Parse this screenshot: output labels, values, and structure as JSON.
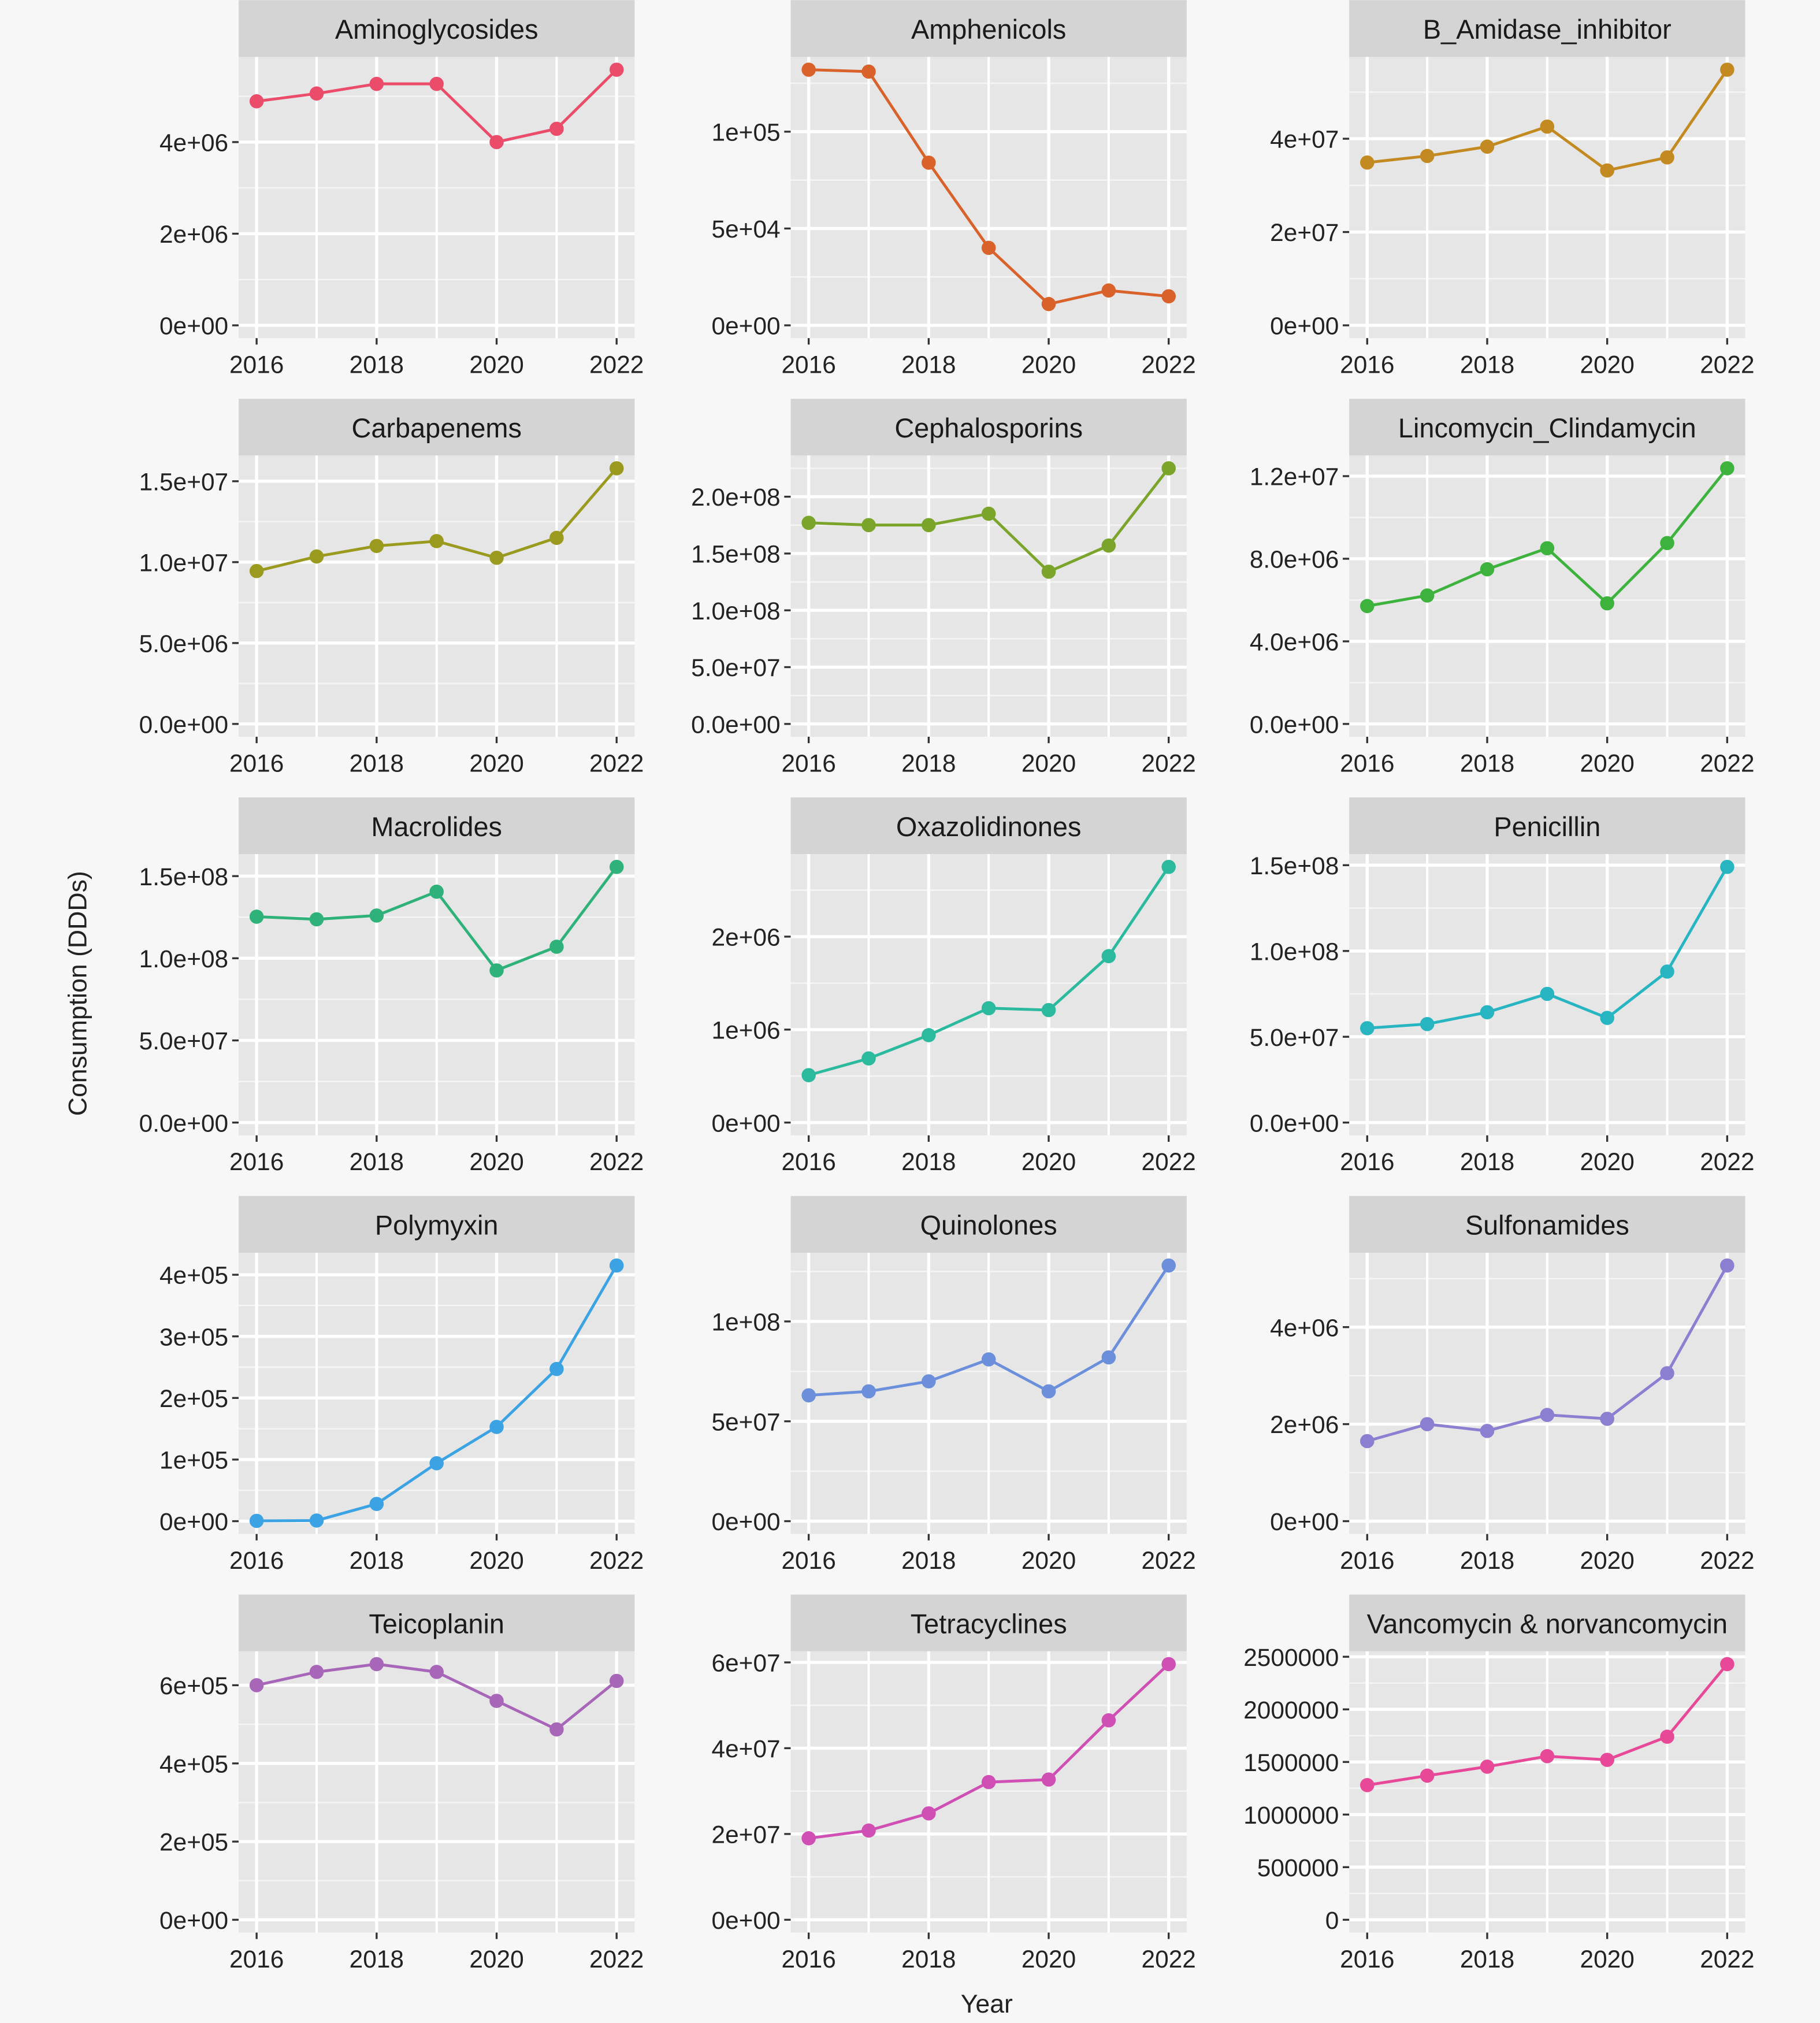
{
  "chart_data": {
    "type": "line",
    "layout": "facet-grid-5x3",
    "xlabel": "Year",
    "ylabel": "Consumption (DDDs)",
    "x": [
      2016,
      2017,
      2018,
      2019,
      2020,
      2021,
      2022
    ],
    "x_ticks": [
      {
        "value": 2016,
        "label": "2016"
      },
      {
        "value": 2018,
        "label": "2018"
      },
      {
        "value": 2020,
        "label": "2020"
      },
      {
        "value": 2022,
        "label": "2022"
      }
    ],
    "xlim": [
      2015.7,
      2022.3
    ],
    "grid": true,
    "legend": "none",
    "panels": [
      {
        "title": "Aminoglycosides",
        "color": "#EA4C6A",
        "values": [
          4890000,
          5060000,
          5270000,
          5270000,
          4000000,
          4290000,
          5580000
        ],
        "ticks": [
          {
            "value": 0,
            "label": "0e+00"
          },
          {
            "value": 2000000,
            "label": "2e+06"
          },
          {
            "value": 4000000,
            "label": "4e+06"
          }
        ]
      },
      {
        "title": "Amphenicols",
        "color": "#D9622B",
        "values": [
          132000,
          131000,
          84000,
          40000,
          11000,
          18000,
          15000
        ],
        "ticks": [
          {
            "value": 0,
            "label": "0e+00"
          },
          {
            "value": 50000,
            "label": "5e+04"
          },
          {
            "value": 100000,
            "label": "1e+05"
          }
        ]
      },
      {
        "title": "B_Amidase_inhibitor",
        "color": "#C28A20",
        "values": [
          34900000,
          36300000,
          38300000,
          42600000,
          33200000,
          36000000,
          54800000
        ],
        "ticks": [
          {
            "value": 0,
            "label": "0e+00"
          },
          {
            "value": 20000000,
            "label": "2e+07"
          },
          {
            "value": 40000000,
            "label": "4e+07"
          }
        ]
      },
      {
        "title": "Carbapenems",
        "color": "#9A9A1E",
        "values": [
          9450000,
          10350000,
          11000000,
          11300000,
          10270000,
          11500000,
          15800000
        ],
        "ticks": [
          {
            "value": 0,
            "label": "0.0e+00"
          },
          {
            "value": 5000000,
            "label": "5.0e+06"
          },
          {
            "value": 10000000,
            "label": "1.0e+07"
          },
          {
            "value": 15000000,
            "label": "1.5e+07"
          }
        ]
      },
      {
        "title": "Cephalosporins",
        "color": "#7AA52A",
        "values": [
          177000000,
          175000000,
          175000000,
          185000000,
          134000000,
          157000000,
          225000000
        ],
        "ticks": [
          {
            "value": 0,
            "label": "0.0e+00"
          },
          {
            "value": 50000000,
            "label": "5.0e+07"
          },
          {
            "value": 100000000,
            "label": "1.0e+08"
          },
          {
            "value": 150000000,
            "label": "1.5e+08"
          },
          {
            "value": 200000000,
            "label": "2.0e+08"
          }
        ]
      },
      {
        "title": "Lincomycin_Clindamycin",
        "color": "#3DB33E",
        "values": [
          5710000,
          6220000,
          7490000,
          8510000,
          5840000,
          8760000,
          12380000
        ],
        "ticks": [
          {
            "value": 0,
            "label": "0.0e+00"
          },
          {
            "value": 4000000,
            "label": "4.0e+06"
          },
          {
            "value": 8000000,
            "label": "8.0e+06"
          },
          {
            "value": 12000000,
            "label": "1.2e+07"
          }
        ]
      },
      {
        "title": "Macrolides",
        "color": "#2FB27A",
        "values": [
          125300000,
          123700000,
          126000000,
          140500000,
          92600000,
          107000000,
          155600000
        ],
        "ticks": [
          {
            "value": 0,
            "label": "0.0e+00"
          },
          {
            "value": 50000000,
            "label": "5.0e+07"
          },
          {
            "value": 100000000,
            "label": "1.0e+08"
          },
          {
            "value": 150000000,
            "label": "1.5e+08"
          }
        ]
      },
      {
        "title": "Oxazolidinones",
        "color": "#2BBA9E",
        "values": [
          510000,
          690000,
          940000,
          1230000,
          1210000,
          1790000,
          2750000
        ],
        "ticks": [
          {
            "value": 0,
            "label": "0e+00"
          },
          {
            "value": 1000000,
            "label": "1e+06"
          },
          {
            "value": 2000000,
            "label": "2e+06"
          }
        ]
      },
      {
        "title": "Penicillin",
        "color": "#27B5C2",
        "values": [
          55000000,
          57400000,
          64300000,
          75000000,
          61000000,
          88000000,
          149000000
        ],
        "ticks": [
          {
            "value": 0,
            "label": "0.0e+00"
          },
          {
            "value": 50000000,
            "label": "5.0e+07"
          },
          {
            "value": 100000000,
            "label": "1.0e+08"
          },
          {
            "value": 150000000,
            "label": "1.5e+08"
          }
        ]
      },
      {
        "title": "Polymyxin",
        "color": "#3BA3E3",
        "values": [
          500,
          1000,
          28000,
          94000,
          153000,
          247000,
          415000
        ],
        "ticks": [
          {
            "value": 0,
            "label": "0e+00"
          },
          {
            "value": 100000,
            "label": "1e+05"
          },
          {
            "value": 200000,
            "label": "2e+05"
          },
          {
            "value": 300000,
            "label": "3e+05"
          },
          {
            "value": 400000,
            "label": "4e+05"
          }
        ]
      },
      {
        "title": "Quinolones",
        "color": "#6B8FDB",
        "values": [
          63000000,
          65000000,
          70000000,
          81000000,
          65000000,
          82000000,
          128000000
        ],
        "ticks": [
          {
            "value": 0,
            "label": "0e+00"
          },
          {
            "value": 50000000,
            "label": "5e+07"
          },
          {
            "value": 100000000,
            "label": "1e+08"
          }
        ]
      },
      {
        "title": "Sulfonamides",
        "color": "#8A7FD0",
        "values": [
          1650000,
          2000000,
          1860000,
          2190000,
          2110000,
          3050000,
          5270000
        ],
        "ticks": [
          {
            "value": 0,
            "label": "0e+00"
          },
          {
            "value": 2000000,
            "label": "2e+06"
          },
          {
            "value": 4000000,
            "label": "4e+06"
          }
        ]
      },
      {
        "title": "Teicoplanin",
        "color": "#A766B8",
        "values": [
          600000,
          634000,
          654000,
          634000,
          560000,
          487000,
          611000
        ],
        "ticks": [
          {
            "value": 0,
            "label": "0e+00"
          },
          {
            "value": 200000,
            "label": "2e+05"
          },
          {
            "value": 400000,
            "label": "4e+05"
          },
          {
            "value": 600000,
            "label": "6e+05"
          }
        ]
      },
      {
        "title": "Tetracyclines",
        "color": "#D04FB4",
        "values": [
          19000000,
          20800000,
          24800000,
          32100000,
          32700000,
          46500000,
          59600000
        ],
        "ticks": [
          {
            "value": 0,
            "label": "0e+00"
          },
          {
            "value": 20000000,
            "label": "2e+07"
          },
          {
            "value": 40000000,
            "label": "4e+07"
          },
          {
            "value": 60000000,
            "label": "6e+07"
          }
        ]
      },
      {
        "title": "Vancomycin & norvancomycin",
        "color": "#E84898",
        "values": [
          1280000,
          1370000,
          1455000,
          1555000,
          1520000,
          1740000,
          2430000
        ],
        "ticks": [
          {
            "value": 0,
            "label": "0"
          },
          {
            "value": 500000,
            "label": "500000"
          },
          {
            "value": 1000000,
            "label": "1000000"
          },
          {
            "value": 1500000,
            "label": "1500000"
          },
          {
            "value": 2000000,
            "label": "2000000"
          },
          {
            "value": 2500000,
            "label": "2500000"
          }
        ]
      }
    ]
  }
}
